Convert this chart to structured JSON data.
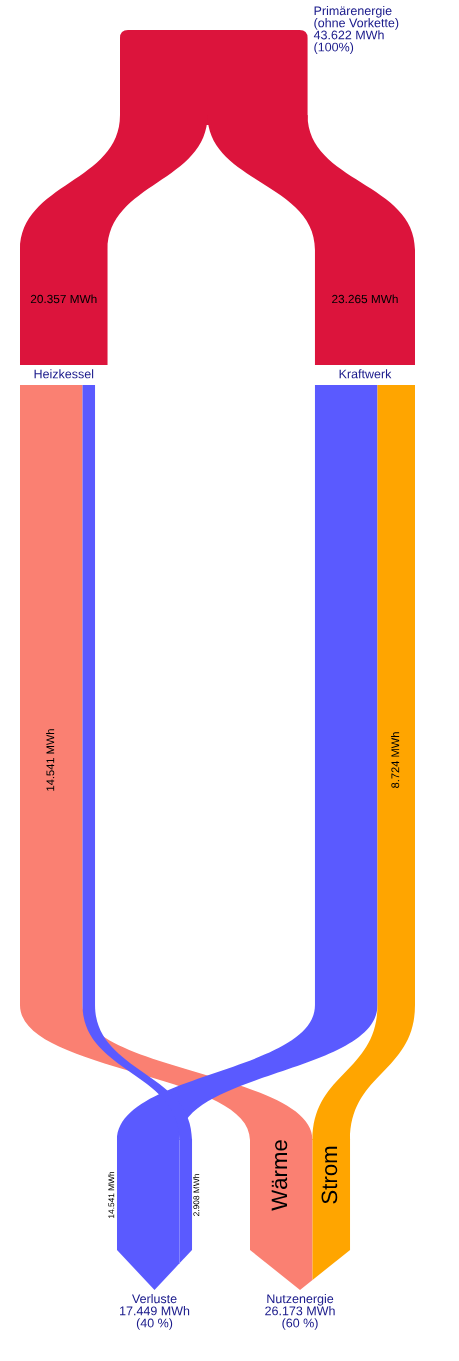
{
  "chart_data": {
    "type": "other",
    "categories": [
      "Primärenergie\n(ohne Vorkette)\n43.622 MWh\n(100%)",
      "Heizkessel",
      "Kraftwerk",
      "Verluste\n17.449 MWh\n(40 %)",
      "Nutzenergie\n26.173 MWh\n(60 %)"
    ],
    "series": [
      {
        "color": "#dc143c",
        "values": [
          null,
          20.357,
          null,
          null,
          null
        ],
        "value_labels": [
          null,
          "20.357 MWh",
          null,
          null,
          null
        ]
      },
      {
        "color": "#dc143c",
        "values": [
          null,
          null,
          23.265,
          null,
          null
        ],
        "value_labels": [
          null,
          null,
          "23.265 MWh",
          null,
          null
        ]
      },
      {
        "color": "#fa8072",
        "values": [
          null,
          14.541,
          null,
          null,
          null
        ],
        "value_labels": [
          null,
          "14.541 MWh",
          null,
          null,
          null
        ]
      },
      {
        "color": "#5a5aff",
        "values": [
          null,
          null,
          null,
          14.541,
          null
        ],
        "value_labels": [
          null,
          null,
          null,
          "14.541 MWh",
          null
        ]
      },
      {
        "color": "#5a5aff",
        "values": [
          null,
          null,
          null,
          2.908,
          null
        ],
        "value_labels": [
          null,
          null,
          null,
          "2.908 MWh",
          null
        ]
      },
      {
        "color": "#ffa500",
        "values": [
          null,
          null,
          8.724,
          null,
          null
        ],
        "value_labels": [
          null,
          null,
          "8.724 MWh",
          null,
          null
        ]
      }
    ],
    "annotations": [
      "Wärme",
      "Strom"
    ]
  }
}
